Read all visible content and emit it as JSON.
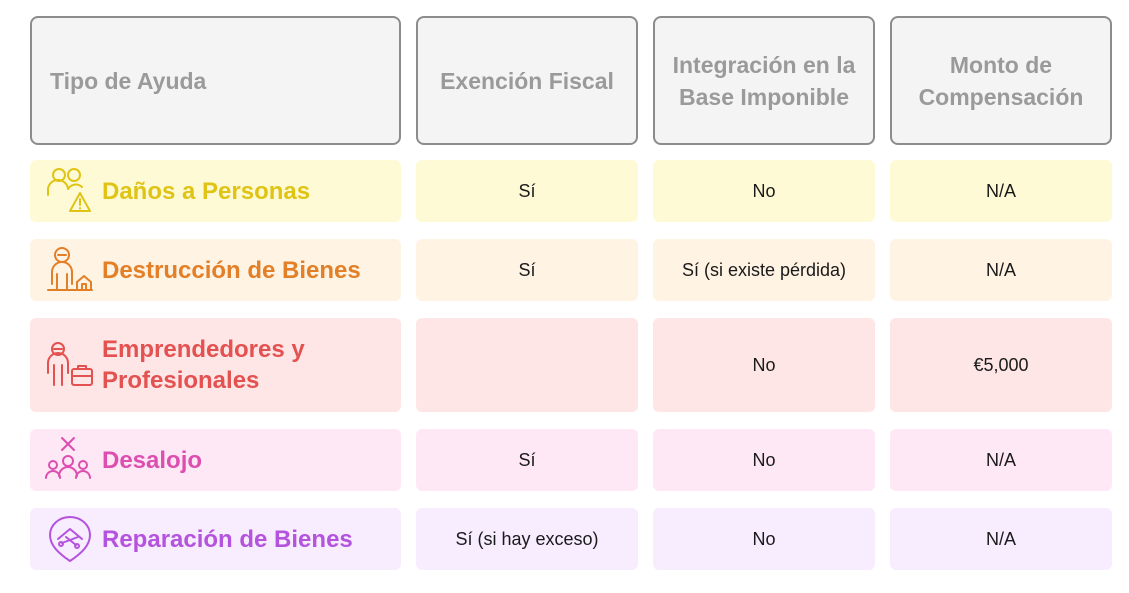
{
  "headers": {
    "type": "Tipo de Ayuda",
    "tax_exemption": "Exención Fiscal",
    "tax_base": "Integración en la Base Imponible",
    "compensation": "Monto de Compensación"
  },
  "rows": [
    {
      "type": "Daños a Personas",
      "icon": "people-warning-icon",
      "color": "#e0c415",
      "bg": "#fffad6",
      "tax_exemption": "Sí",
      "tax_base": "No",
      "compensation": "N/A"
    },
    {
      "type": "Destrucción de Bienes",
      "icon": "person-house-icon",
      "color": "#e37f26",
      "bg": "#fff3e4",
      "tax_exemption": "Sí",
      "tax_base": "Sí (si existe pérdida)",
      "compensation": "N/A"
    },
    {
      "type": "Emprendedores y Profesionales",
      "icon": "professional-briefcase-icon",
      "color": "#e45151",
      "bg": "#ffe6e6",
      "tax_exemption": "",
      "tax_base": "No",
      "compensation": "€5,000"
    },
    {
      "type": "Desalojo",
      "icon": "people-x-icon",
      "color": "#dc4fb1",
      "bg": "#ffe8f6",
      "tax_exemption": "Sí",
      "tax_base": "No",
      "compensation": "N/A"
    },
    {
      "type": "Reparación de Bienes",
      "icon": "house-tools-icon",
      "color": "#b453dd",
      "bg": "#f8ecff",
      "tax_exemption": "Sí (si hay exceso)",
      "tax_base": "No",
      "compensation": "N/A"
    }
  ]
}
